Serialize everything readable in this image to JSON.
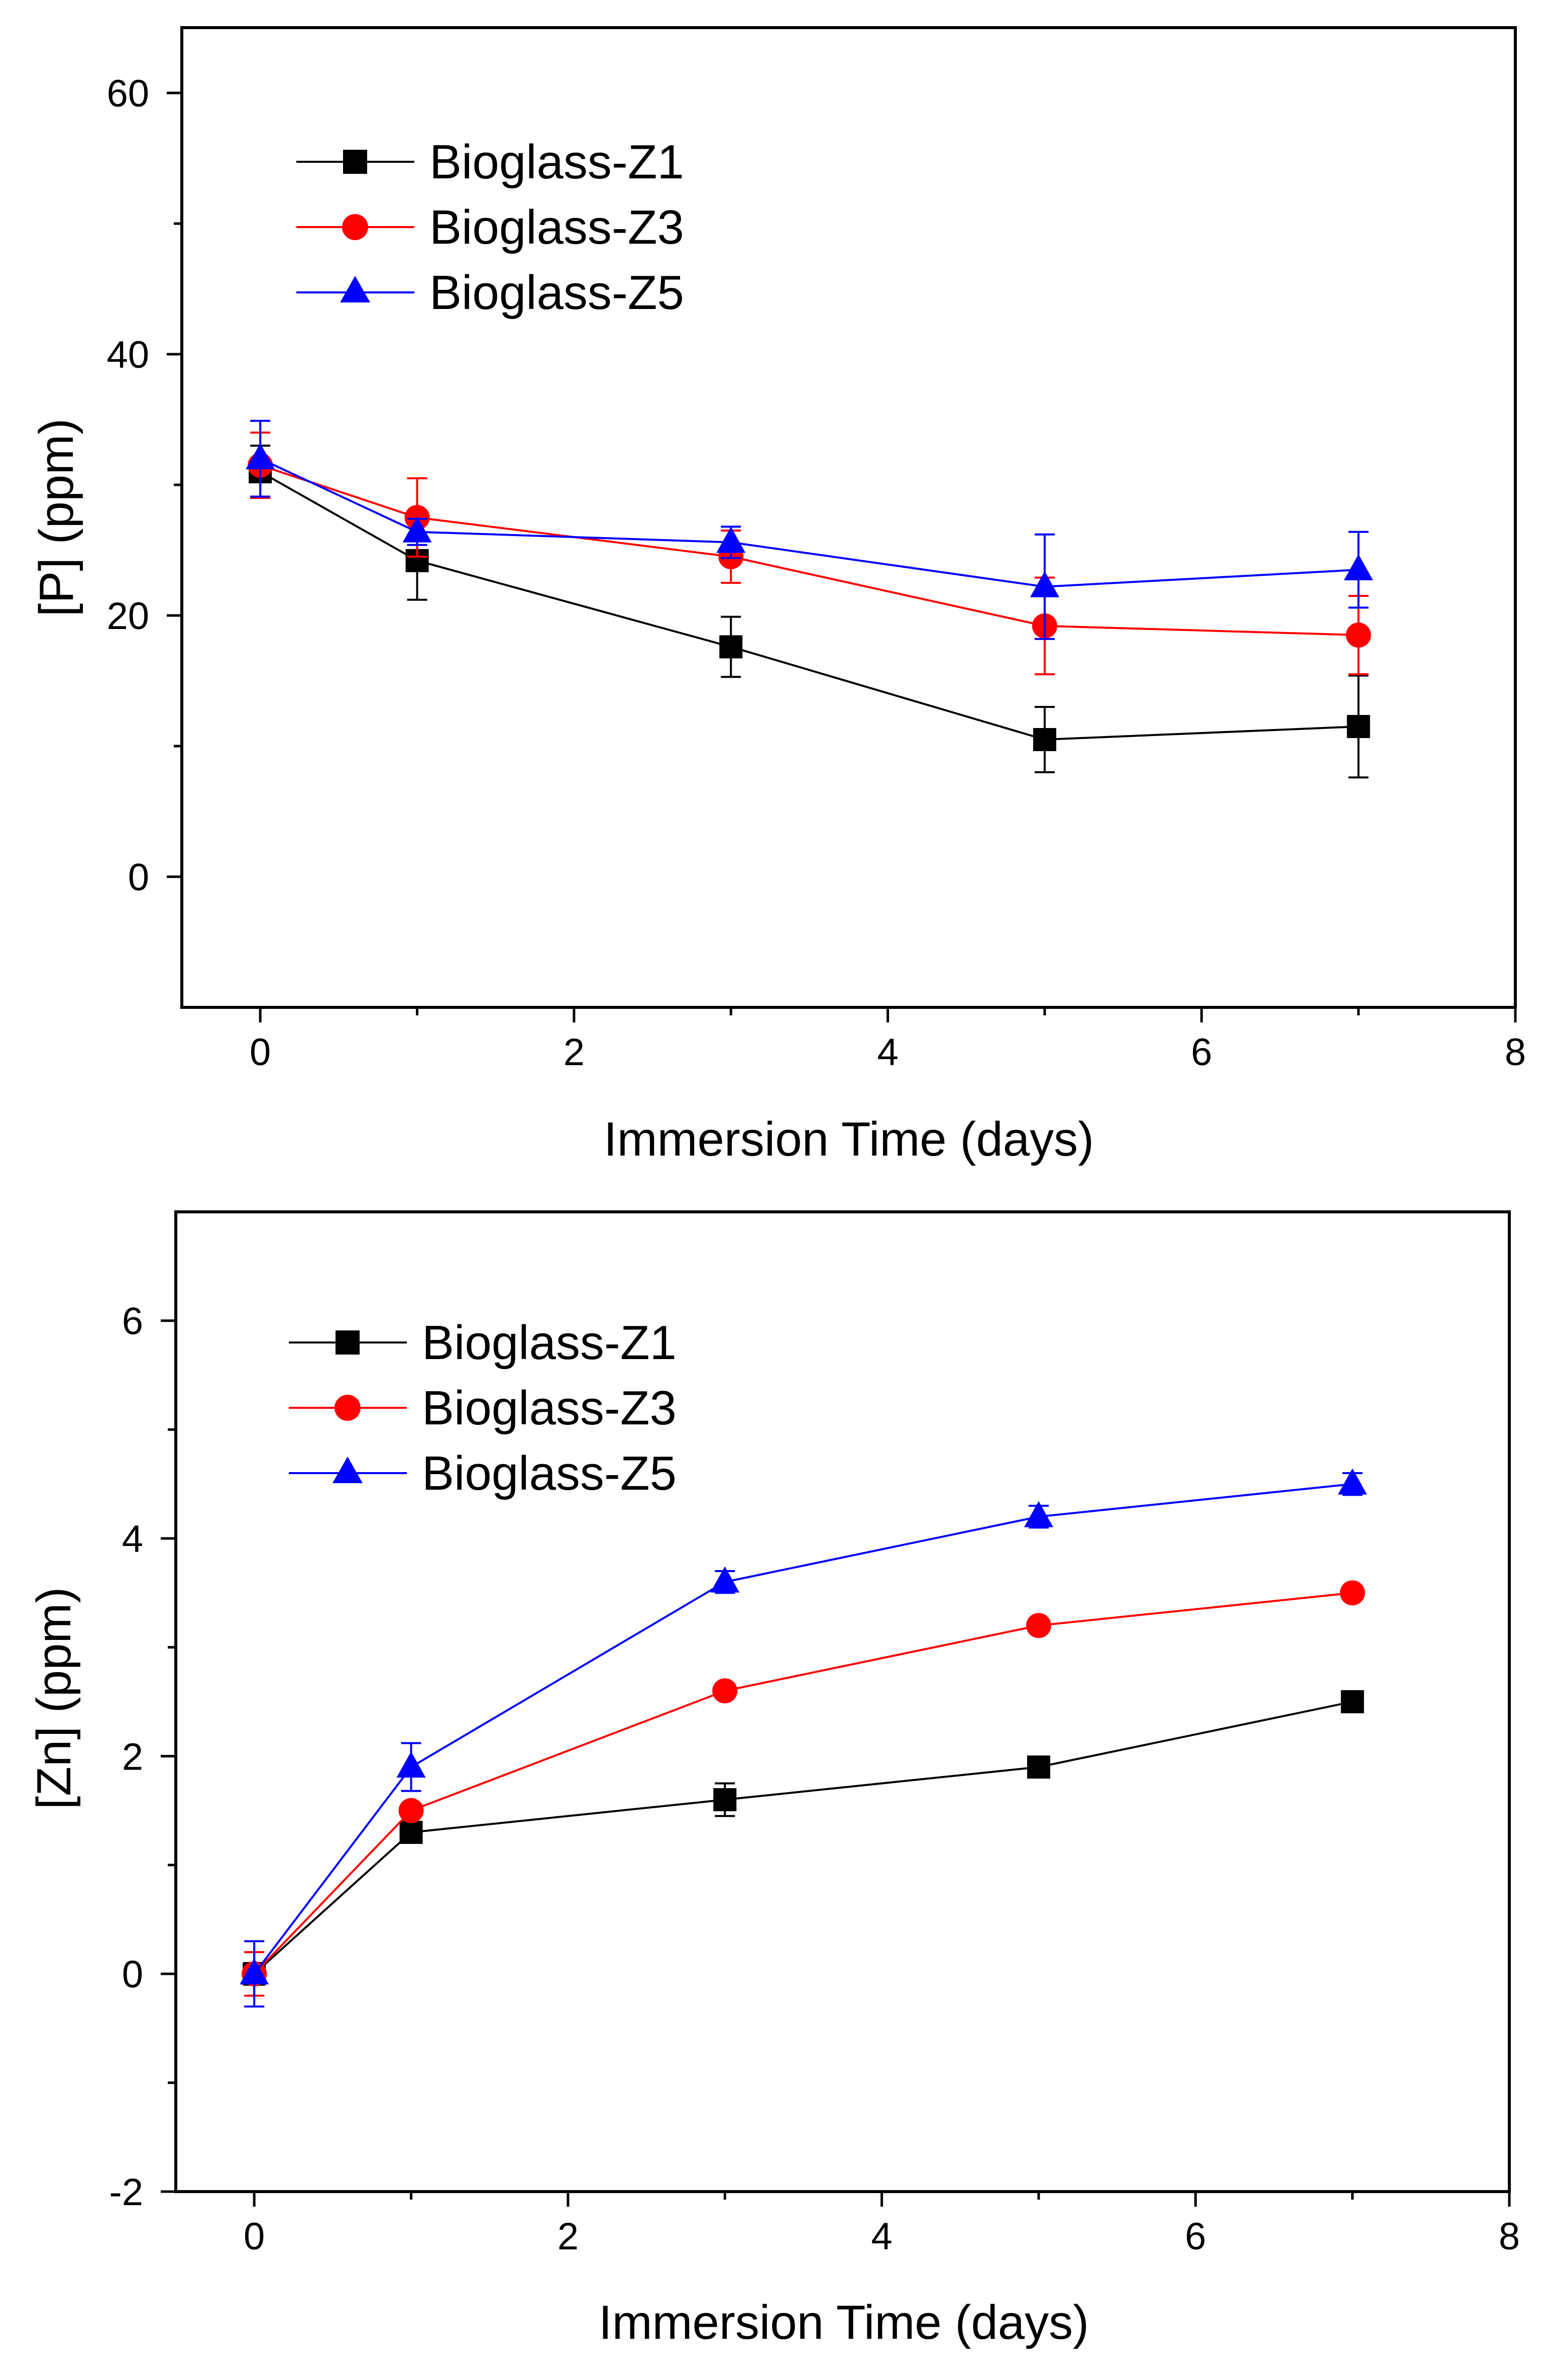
{
  "chart_data": [
    {
      "type": "line",
      "title": "",
      "xlabel": "Immersion Time (days)",
      "ylabel": "[P] (ppm)",
      "xlim": [
        -0.5,
        8
      ],
      "ylim": [
        -10,
        65
      ],
      "xticks": [
        0,
        2,
        4,
        6,
        8
      ],
      "yticks": [
        0,
        20,
        40,
        60
      ],
      "x_tick_labels": [
        "0",
        "2",
        "4",
        "6",
        "8"
      ],
      "y_tick_labels": [
        "0",
        "20",
        "40",
        "60"
      ],
      "grid": false,
      "legend_position": "top-left",
      "x": [
        0,
        1,
        3,
        5,
        7
      ],
      "series": [
        {
          "name": "Bioglass-Z1",
          "marker": "square",
          "color": "#000000",
          "values": [
            31,
            24.2,
            17.6,
            10.5,
            11.5
          ],
          "errors": [
            2.0,
            3.0,
            2.3,
            2.5,
            3.9
          ]
        },
        {
          "name": "Bioglass-Z3",
          "marker": "circle",
          "color": "#ff0000",
          "values": [
            31.5,
            27.5,
            24.5,
            19.2,
            18.5
          ],
          "errors": [
            2.5,
            3.0,
            2.0,
            3.7,
            3.0
          ]
        },
        {
          "name": "Bioglass-Z5",
          "marker": "triangle",
          "color": "#0000ff",
          "values": [
            32,
            26.4,
            25.6,
            22.2,
            23.5
          ],
          "errors": [
            2.9,
            1.0,
            1.2,
            4.0,
            2.9
          ]
        }
      ]
    },
    {
      "type": "line",
      "title": "",
      "xlabel": "Immersion Time (days)",
      "ylabel": "[Zn] (ppm)",
      "xlim": [
        -0.5,
        8
      ],
      "ylim": [
        -2,
        7
      ],
      "xticks": [
        0,
        2,
        4,
        6,
        8
      ],
      "yticks": [
        -2,
        0,
        2,
        4,
        6
      ],
      "x_tick_labels": [
        "0",
        "2",
        "4",
        "6",
        "8"
      ],
      "y_tick_labels": [
        "-2",
        "0",
        "2",
        "4",
        "6"
      ],
      "grid": false,
      "legend_position": "top-left",
      "x": [
        0,
        1,
        3,
        5,
        7
      ],
      "series": [
        {
          "name": "Bioglass-Z1",
          "marker": "square",
          "color": "#000000",
          "values": [
            0,
            1.3,
            1.6,
            1.9,
            2.5
          ],
          "errors": [
            0.1,
            0.05,
            0.15,
            0.05,
            0.05
          ]
        },
        {
          "name": "Bioglass-Z3",
          "marker": "circle",
          "color": "#ff0000",
          "values": [
            0,
            1.5,
            2.6,
            3.2,
            3.5
          ],
          "errors": [
            0.2,
            0.05,
            0.05,
            0.05,
            0.05
          ]
        },
        {
          "name": "Bioglass-Z5",
          "marker": "triangle",
          "color": "#0000ff",
          "values": [
            0,
            1.9,
            3.6,
            4.2,
            4.5
          ],
          "errors": [
            0.3,
            0.22,
            0.1,
            0.1,
            0.1
          ]
        }
      ]
    }
  ]
}
